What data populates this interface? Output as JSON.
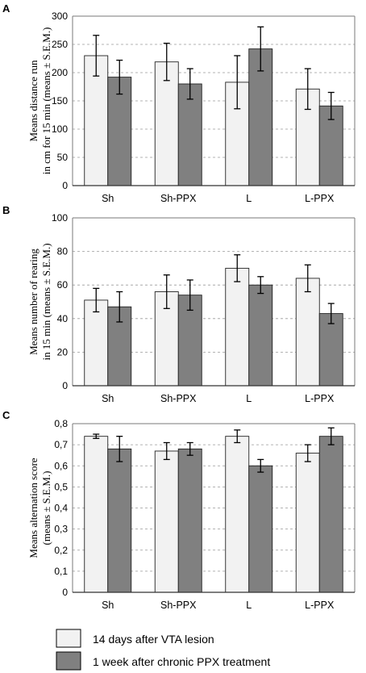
{
  "legend": {
    "items": [
      {
        "label": "14 days after VTA lesion",
        "color": "#f2f2f2"
      },
      {
        "label": "1 week after chronic PPX treatment",
        "color": "#808080"
      }
    ]
  },
  "colors": {
    "series1": "#f2f2f2",
    "series2": "#808080",
    "edge": "#222222"
  },
  "chart_data": [
    {
      "panel": "A",
      "type": "bar",
      "ylabel_lines": [
        "Means distance run",
        "in cm for 15 min (means ± S.E.M.)"
      ],
      "categories": [
        "Sh",
        "Sh-PPX",
        "L",
        "L-PPX"
      ],
      "ylim": [
        0,
        300
      ],
      "yticks": [
        "0",
        "50",
        "100",
        "150",
        "200",
        "250",
        "300"
      ],
      "grid": true,
      "series": [
        {
          "name": "14 days after VTA lesion",
          "values": [
            230,
            219,
            183,
            171
          ],
          "err": [
            36,
            33,
            47,
            36
          ]
        },
        {
          "name": "1 week after chronic PPX treatment",
          "values": [
            192,
            180,
            242,
            141
          ],
          "err": [
            30,
            27,
            39,
            24
          ]
        }
      ]
    },
    {
      "panel": "B",
      "type": "bar",
      "ylabel_lines": [
        "Means number of rearing",
        "in 15 min (means ± S.E.M.)"
      ],
      "categories": [
        "Sh",
        "Sh-PPX",
        "L",
        "L-PPX"
      ],
      "ylim": [
        0,
        100
      ],
      "yticks": [
        "0",
        "20",
        "40",
        "60",
        "80",
        "100"
      ],
      "grid": true,
      "series": [
        {
          "name": "14 days after VTA lesion",
          "values": [
            51,
            56,
            70,
            64
          ],
          "err": [
            7,
            10,
            8,
            8
          ]
        },
        {
          "name": "1 week after chronic PPX treatment",
          "values": [
            47,
            54,
            60,
            43
          ],
          "err": [
            9,
            9,
            5,
            6
          ]
        }
      ]
    },
    {
      "panel": "C",
      "type": "bar",
      "ylabel_lines": [
        "Means alternation score",
        "(means ± S.E.M.)"
      ],
      "categories": [
        "Sh",
        "Sh-PPX",
        "L",
        "L-PPX"
      ],
      "ylim": [
        0,
        0.8
      ],
      "yticks": [
        "0",
        "0,1",
        "0,2",
        "0,3",
        "0,4",
        "0,5",
        "0,6",
        "0,7",
        "0,8"
      ],
      "grid": true,
      "series": [
        {
          "name": "14 days after VTA lesion",
          "values": [
            0.74,
            0.67,
            0.74,
            0.66
          ],
          "err": [
            0.01,
            0.04,
            0.03,
            0.04
          ]
        },
        {
          "name": "1 week after chronic PPX treatment",
          "values": [
            0.68,
            0.68,
            0.6,
            0.74
          ],
          "err": [
            0.06,
            0.03,
            0.03,
            0.04
          ]
        }
      ]
    }
  ]
}
